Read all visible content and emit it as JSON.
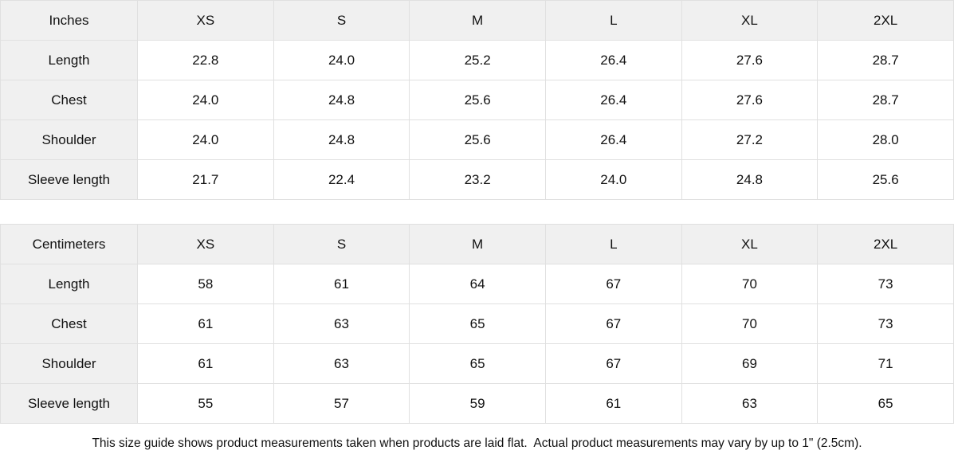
{
  "colors": {
    "header_bg": "#f0f0f0",
    "cell_bg": "#ffffff",
    "border": "#e0e0e0",
    "text": "#111111"
  },
  "tables": [
    {
      "unit_label": "Inches",
      "size_headers": [
        "XS",
        "S",
        "M",
        "L",
        "XL",
        "2XL"
      ],
      "rows": [
        {
          "label": "Length",
          "values": [
            "22.8",
            "24.0",
            "25.2",
            "26.4",
            "27.6",
            "28.7"
          ]
        },
        {
          "label": "Chest",
          "values": [
            "24.0",
            "24.8",
            "25.6",
            "26.4",
            "27.6",
            "28.7"
          ]
        },
        {
          "label": "Shoulder",
          "values": [
            "24.0",
            "24.8",
            "25.6",
            "26.4",
            "27.2",
            "28.0"
          ]
        },
        {
          "label": "Sleeve length",
          "values": [
            "21.7",
            "22.4",
            "23.2",
            "24.0",
            "24.8",
            "25.6"
          ]
        }
      ]
    },
    {
      "unit_label": "Centimeters",
      "size_headers": [
        "XS",
        "S",
        "M",
        "L",
        "XL",
        "2XL"
      ],
      "rows": [
        {
          "label": "Length",
          "values": [
            "58",
            "61",
            "64",
            "67",
            "70",
            "73"
          ]
        },
        {
          "label": "Chest",
          "values": [
            "61",
            "63",
            "65",
            "67",
            "70",
            "73"
          ]
        },
        {
          "label": "Shoulder",
          "values": [
            "61",
            "63",
            "65",
            "67",
            "69",
            "71"
          ]
        },
        {
          "label": "Sleeve length",
          "values": [
            "55",
            "57",
            "59",
            "61",
            "63",
            "65"
          ]
        }
      ]
    }
  ],
  "footer": {
    "note": "This size guide shows product measurements taken when products are laid flat.  Actual product measurements may vary by up to 1\" (2.5cm)."
  }
}
